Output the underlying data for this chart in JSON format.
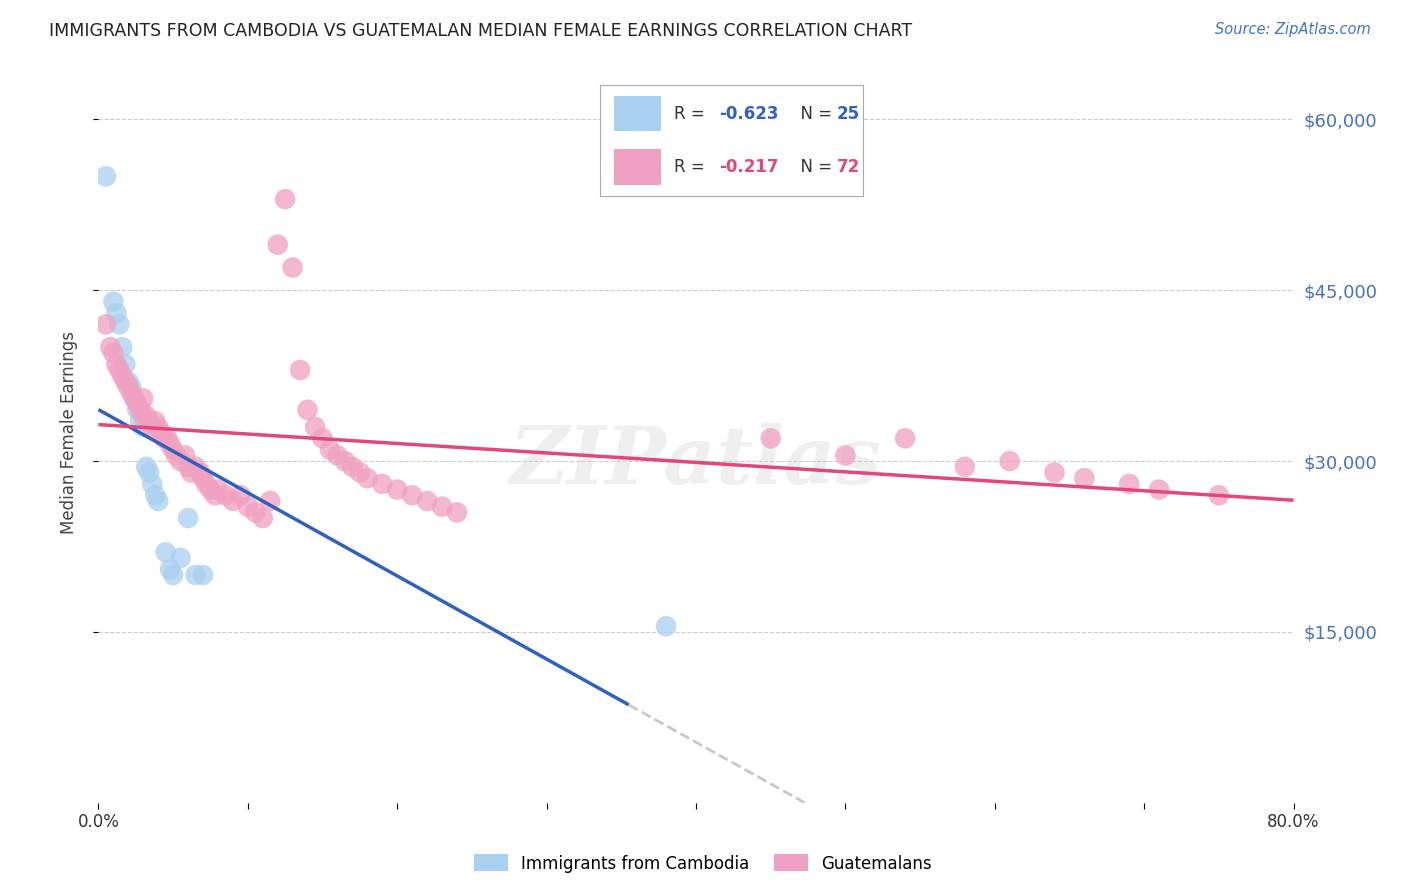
{
  "title": "IMMIGRANTS FROM CAMBODIA VS GUATEMALAN MEDIAN FEMALE EARNINGS CORRELATION CHART",
  "source": "Source: ZipAtlas.com",
  "ylabel": "Median Female Earnings",
  "ylim": [
    0,
    65000
  ],
  "xlim": [
    0.0,
    0.8
  ],
  "ytick_vals": [
    15000,
    30000,
    45000,
    60000
  ],
  "ytick_labels": [
    "$15,000",
    "$30,000",
    "$45,000",
    "$60,000"
  ],
  "xtick_positions": [
    0.0,
    0.1,
    0.2,
    0.3,
    0.4,
    0.5,
    0.6,
    0.7,
    0.8
  ],
  "xtick_labels": [
    "0.0%",
    "",
    "",
    "",
    "",
    "",
    "",
    "",
    "80.0%"
  ],
  "legend_label1": "Immigrants from Cambodia",
  "legend_label2": "Guatemalans",
  "blue_scatter_color": "#a8d0f0",
  "pink_scatter_color": "#f0a0c0",
  "blue_line_color": "#3060c0",
  "pink_line_color": "#e04878",
  "dash_line_color": "#bbbbbb",
  "watermark": "ZIPatlas",
  "watermark_color": "#cccccc",
  "background_color": "#ffffff",
  "grid_color": "#cccccc",
  "right_axis_color": "#4472c4",
  "title_color": "#222222",
  "legend_r1": "R = −0.623",
  "legend_n1": "N = 25",
  "legend_r2": "R = −0.217",
  "legend_n2": "N = 72",
  "cambodia_x": [
    0.005,
    0.01,
    0.012,
    0.014,
    0.016,
    0.018,
    0.02,
    0.022,
    0.024,
    0.026,
    0.028,
    0.03,
    0.032,
    0.034,
    0.036,
    0.038,
    0.04,
    0.045,
    0.048,
    0.05,
    0.055,
    0.06,
    0.065,
    0.07,
    0.38
  ],
  "cambodia_y": [
    55000,
    44000,
    43000,
    42000,
    40000,
    38500,
    37000,
    36500,
    35500,
    34500,
    33500,
    33000,
    29500,
    29000,
    28000,
    27000,
    26500,
    22000,
    20500,
    20000,
    21500,
    25000,
    20000,
    20000,
    15500
  ],
  "guatemalan_x": [
    0.005,
    0.008,
    0.01,
    0.012,
    0.014,
    0.016,
    0.018,
    0.02,
    0.022,
    0.024,
    0.026,
    0.028,
    0.03,
    0.03,
    0.032,
    0.034,
    0.036,
    0.038,
    0.04,
    0.042,
    0.044,
    0.046,
    0.048,
    0.05,
    0.052,
    0.055,
    0.058,
    0.06,
    0.062,
    0.065,
    0.068,
    0.07,
    0.072,
    0.075,
    0.078,
    0.08,
    0.085,
    0.09,
    0.095,
    0.1,
    0.105,
    0.11,
    0.115,
    0.12,
    0.125,
    0.13,
    0.135,
    0.14,
    0.145,
    0.15,
    0.155,
    0.16,
    0.165,
    0.17,
    0.175,
    0.18,
    0.19,
    0.2,
    0.21,
    0.22,
    0.23,
    0.24,
    0.45,
    0.5,
    0.54,
    0.58,
    0.61,
    0.64,
    0.66,
    0.69,
    0.71,
    0.75
  ],
  "guatemalan_y": [
    42000,
    40000,
    39500,
    38500,
    38000,
    37500,
    37000,
    36500,
    36000,
    35500,
    35000,
    34500,
    34000,
    35500,
    34000,
    33500,
    33000,
    33500,
    33000,
    32500,
    32000,
    32000,
    31500,
    31000,
    30500,
    30000,
    30500,
    29500,
    29000,
    29500,
    29000,
    28500,
    28000,
    27500,
    27000,
    27500,
    27000,
    26500,
    27000,
    26000,
    25500,
    25000,
    26500,
    49000,
    53000,
    47000,
    38000,
    34500,
    33000,
    32000,
    31000,
    30500,
    30000,
    29500,
    29000,
    28500,
    28000,
    27500,
    27000,
    26500,
    26000,
    25500,
    32000,
    30500,
    32000,
    29500,
    30000,
    29000,
    28500,
    28000,
    27500,
    27000
  ]
}
